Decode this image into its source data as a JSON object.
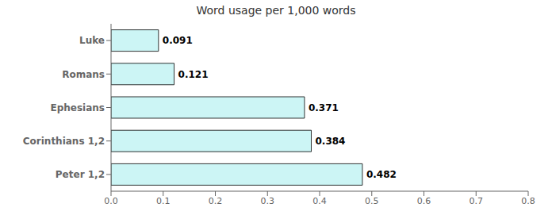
{
  "chart_data": {
    "type": "bar",
    "orientation": "horizontal",
    "title": "Word usage per 1,000 words",
    "categories": [
      "Luke",
      "Romans",
      "Ephesians",
      "Corinthians 1,2",
      "Peter 1,2"
    ],
    "values": [
      0.091,
      0.121,
      0.371,
      0.384,
      0.482
    ],
    "color": "#ccf5f5",
    "xlim": [
      0,
      0.8
    ],
    "xticks": [
      {
        "value": 0,
        "label": "0.0"
      },
      0.1,
      0.2,
      0.3,
      0.4,
      0.5,
      0.6,
      0.7,
      0.8
    ],
    "data_labels": true,
    "grid": false
  }
}
